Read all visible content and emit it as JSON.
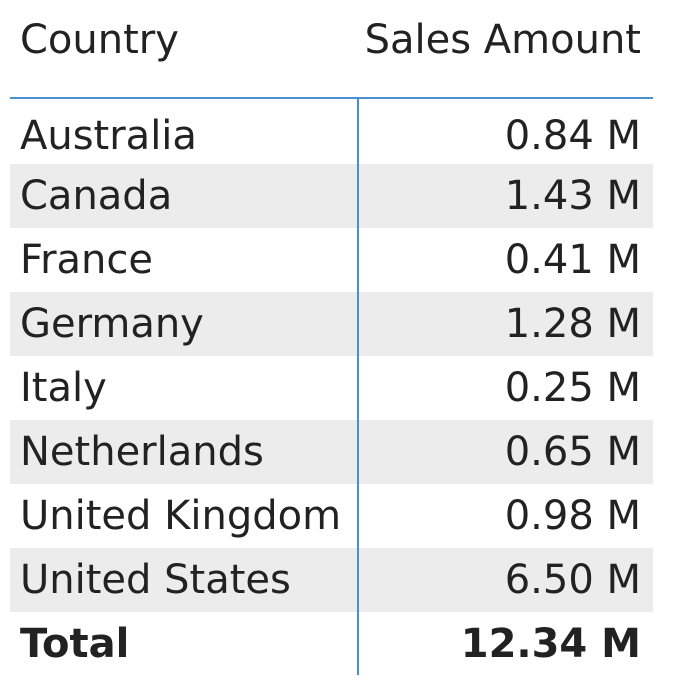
{
  "chart_data": {
    "type": "table",
    "columns": [
      "Country",
      "Sales Amount"
    ],
    "rows": [
      {
        "country": "Australia",
        "sales": "0.84 M",
        "value": 0.84
      },
      {
        "country": "Canada",
        "sales": "1.43 M",
        "value": 1.43
      },
      {
        "country": "France",
        "sales": "0.41 M",
        "value": 0.41
      },
      {
        "country": "Germany",
        "sales": "1.28 M",
        "value": 1.28
      },
      {
        "country": "Italy",
        "sales": "0.25 M",
        "value": 0.25
      },
      {
        "country": "Netherlands",
        "sales": "0.65 M",
        "value": 0.65
      },
      {
        "country": "United Kingdom",
        "sales": "0.98 M",
        "value": 0.98
      },
      {
        "country": "United States",
        "sales": "6.50 M",
        "value": 6.5
      }
    ],
    "total": {
      "label": "Total",
      "sales": "12.34 M",
      "value": 12.34
    },
    "unit": "M"
  },
  "colors": {
    "header_rule": "#4a90d0",
    "alt_row": "#ececec",
    "text": "#222222"
  }
}
